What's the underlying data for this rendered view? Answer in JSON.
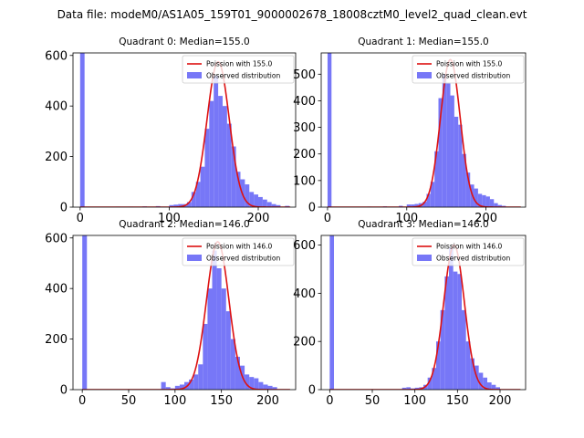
{
  "figure_title": "Data file: modeM0/AS1A05_159T01_9000002678_18008cztM0_level2_quad_clean.evt",
  "colors": {
    "hist": "#7777f7",
    "poisson": "#dd1111"
  },
  "chart_data": [
    {
      "type": "bar",
      "title": "Quadrant 0: Median=155.0",
      "legend": [
        "Poission with 155.0",
        "Observed distribution"
      ],
      "legend_position": "top-right",
      "xlim": [
        -8,
        242
      ],
      "ylim": [
        0,
        610
      ],
      "xticks": [
        0,
        100,
        200
      ],
      "yticks": [
        0,
        200,
        400,
        600
      ],
      "poisson_mean": 155,
      "poisson_peak": 575,
      "bins": [
        {
          "x": 0,
          "y": 610
        },
        {
          "x": 40,
          "y": 2
        },
        {
          "x": 55,
          "y": 2
        },
        {
          "x": 70,
          "y": 3
        },
        {
          "x": 85,
          "y": 4
        },
        {
          "x": 100,
          "y": 8
        },
        {
          "x": 105,
          "y": 10
        },
        {
          "x": 110,
          "y": 12
        },
        {
          "x": 115,
          "y": 12
        },
        {
          "x": 120,
          "y": 20
        },
        {
          "x": 125,
          "y": 60
        },
        {
          "x": 130,
          "y": 100
        },
        {
          "x": 135,
          "y": 160
        },
        {
          "x": 140,
          "y": 310
        },
        {
          "x": 145,
          "y": 420
        },
        {
          "x": 150,
          "y": 520
        },
        {
          "x": 155,
          "y": 440
        },
        {
          "x": 160,
          "y": 400
        },
        {
          "x": 165,
          "y": 330
        },
        {
          "x": 170,
          "y": 240
        },
        {
          "x": 175,
          "y": 140
        },
        {
          "x": 180,
          "y": 110
        },
        {
          "x": 185,
          "y": 90
        },
        {
          "x": 190,
          "y": 60
        },
        {
          "x": 195,
          "y": 50
        },
        {
          "x": 200,
          "y": 40
        },
        {
          "x": 205,
          "y": 30
        },
        {
          "x": 210,
          "y": 20
        },
        {
          "x": 215,
          "y": 12
        },
        {
          "x": 220,
          "y": 8
        },
        {
          "x": 230,
          "y": 5
        }
      ]
    },
    {
      "type": "bar",
      "title": "Quadrant 1: Median=155.0",
      "legend": [
        "Poission with 155.0",
        "Observed distribution"
      ],
      "legend_position": "top-right",
      "xlim": [
        -8,
        250
      ],
      "ylim": [
        0,
        580
      ],
      "xticks": [
        0,
        100,
        200
      ],
      "yticks": [
        0,
        100,
        200,
        300,
        400,
        500
      ],
      "poisson_mean": 155,
      "poisson_peak": 555,
      "bins": [
        {
          "x": 0,
          "y": 580
        },
        {
          "x": 50,
          "y": 2
        },
        {
          "x": 70,
          "y": 3
        },
        {
          "x": 90,
          "y": 5
        },
        {
          "x": 100,
          "y": 10
        },
        {
          "x": 105,
          "y": 10
        },
        {
          "x": 110,
          "y": 12
        },
        {
          "x": 115,
          "y": 15
        },
        {
          "x": 120,
          "y": 20
        },
        {
          "x": 125,
          "y": 50
        },
        {
          "x": 130,
          "y": 95
        },
        {
          "x": 135,
          "y": 210
        },
        {
          "x": 140,
          "y": 410
        },
        {
          "x": 145,
          "y": 500
        },
        {
          "x": 150,
          "y": 465
        },
        {
          "x": 155,
          "y": 420
        },
        {
          "x": 160,
          "y": 340
        },
        {
          "x": 165,
          "y": 310
        },
        {
          "x": 170,
          "y": 200
        },
        {
          "x": 175,
          "y": 130
        },
        {
          "x": 180,
          "y": 85
        },
        {
          "x": 185,
          "y": 70
        },
        {
          "x": 190,
          "y": 50
        },
        {
          "x": 195,
          "y": 45
        },
        {
          "x": 200,
          "y": 40
        },
        {
          "x": 205,
          "y": 30
        },
        {
          "x": 210,
          "y": 15
        },
        {
          "x": 215,
          "y": 8
        },
        {
          "x": 220,
          "y": 5
        }
      ]
    },
    {
      "type": "bar",
      "title": "Quadrant 2: Median=146.0",
      "legend": [
        "Poission with 146.0",
        "Observed distribution"
      ],
      "legend_position": "top-right",
      "xlim": [
        -10,
        230
      ],
      "ylim": [
        0,
        610
      ],
      "xticks": [
        0,
        50,
        100,
        150,
        200
      ],
      "yticks": [
        0,
        200,
        400,
        600
      ],
      "poisson_mean": 146,
      "poisson_peak": 585,
      "bins": [
        {
          "x": 0,
          "y": 610
        },
        {
          "x": 85,
          "y": 30
        },
        {
          "x": 90,
          "y": 10
        },
        {
          "x": 95,
          "y": 5
        },
        {
          "x": 100,
          "y": 15
        },
        {
          "x": 105,
          "y": 20
        },
        {
          "x": 110,
          "y": 30
        },
        {
          "x": 115,
          "y": 40
        },
        {
          "x": 120,
          "y": 60
        },
        {
          "x": 125,
          "y": 100
        },
        {
          "x": 130,
          "y": 260
        },
        {
          "x": 135,
          "y": 400
        },
        {
          "x": 140,
          "y": 550
        },
        {
          "x": 145,
          "y": 480
        },
        {
          "x": 150,
          "y": 400
        },
        {
          "x": 155,
          "y": 310
        },
        {
          "x": 160,
          "y": 200
        },
        {
          "x": 165,
          "y": 130
        },
        {
          "x": 170,
          "y": 95
        },
        {
          "x": 175,
          "y": 60
        },
        {
          "x": 180,
          "y": 50
        },
        {
          "x": 185,
          "y": 45
        },
        {
          "x": 190,
          "y": 30
        },
        {
          "x": 195,
          "y": 20
        },
        {
          "x": 200,
          "y": 15
        },
        {
          "x": 205,
          "y": 10
        }
      ]
    },
    {
      "type": "bar",
      "title": "Quadrant 3: Median=146.0",
      "legend": [
        "Poission with 146.0",
        "Observed distribution"
      ],
      "legend_position": "top-right",
      "xlim": [
        -10,
        230
      ],
      "ylim": [
        0,
        640
      ],
      "xticks": [
        0,
        50,
        100,
        150,
        200
      ],
      "yticks": [
        0,
        200,
        400,
        600
      ],
      "poisson_mean": 146,
      "poisson_peak": 600,
      "bins": [
        {
          "x": 0,
          "y": 640
        },
        {
          "x": 85,
          "y": 8
        },
        {
          "x": 90,
          "y": 10
        },
        {
          "x": 95,
          "y": 5
        },
        {
          "x": 100,
          "y": 8
        },
        {
          "x": 105,
          "y": 10
        },
        {
          "x": 110,
          "y": 20
        },
        {
          "x": 115,
          "y": 50
        },
        {
          "x": 120,
          "y": 90
        },
        {
          "x": 125,
          "y": 200
        },
        {
          "x": 130,
          "y": 330
        },
        {
          "x": 135,
          "y": 470
        },
        {
          "x": 140,
          "y": 590
        },
        {
          "x": 145,
          "y": 490
        },
        {
          "x": 150,
          "y": 480
        },
        {
          "x": 155,
          "y": 330
        },
        {
          "x": 160,
          "y": 200
        },
        {
          "x": 165,
          "y": 130
        },
        {
          "x": 170,
          "y": 100
        },
        {
          "x": 175,
          "y": 70
        },
        {
          "x": 180,
          "y": 50
        },
        {
          "x": 185,
          "y": 30
        },
        {
          "x": 190,
          "y": 20
        },
        {
          "x": 195,
          "y": 10
        }
      ]
    }
  ]
}
